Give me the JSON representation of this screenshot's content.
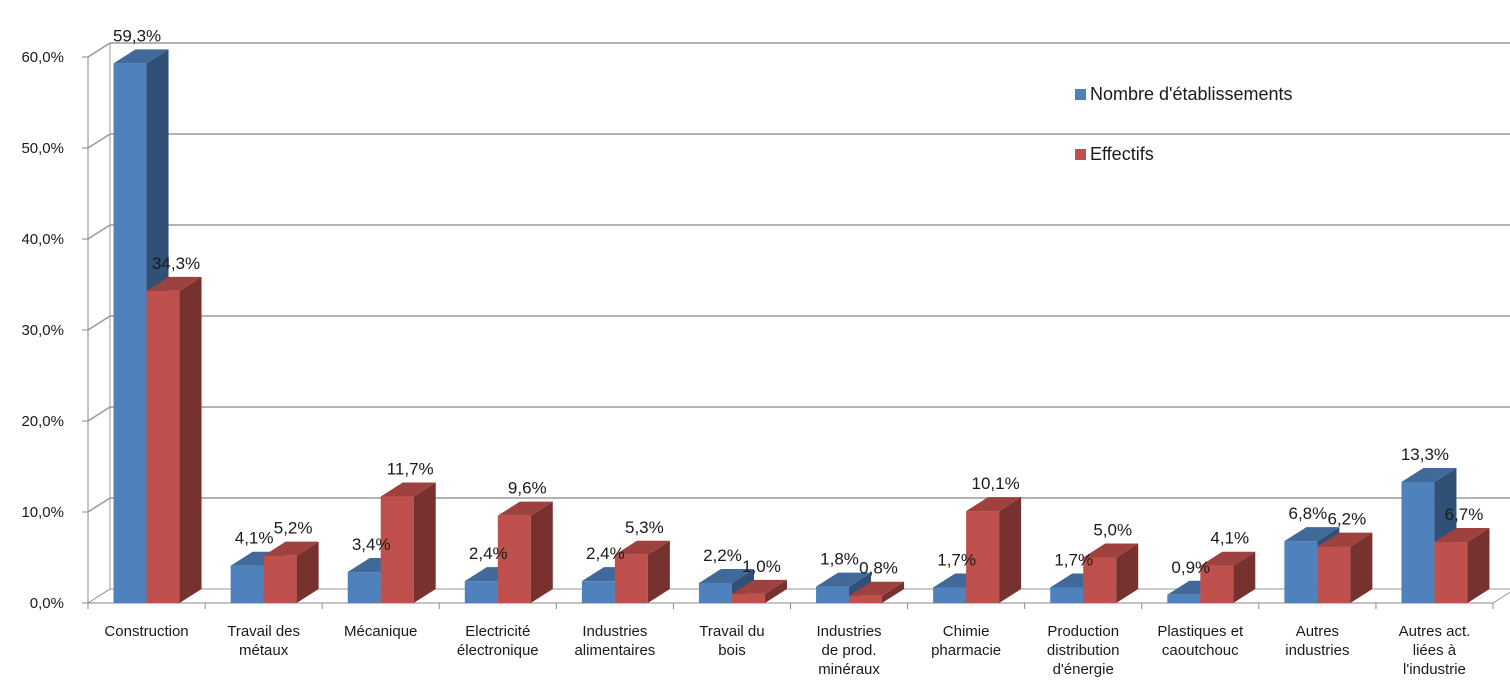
{
  "chart_data": {
    "type": "bar",
    "title": "",
    "xlabel": "",
    "ylabel": "",
    "ylim": [
      0,
      60
    ],
    "yticks": [
      "0,0%",
      "10,0%",
      "20,0%",
      "30,0%",
      "40,0%",
      "50,0%",
      "60,0%"
    ],
    "grid": true,
    "legend_position": "top-right",
    "categories": [
      [
        "Construction"
      ],
      [
        "Travail des",
        "métaux"
      ],
      [
        "Mécanique"
      ],
      [
        "Electricité",
        "électronique"
      ],
      [
        "Industries",
        "alimentaires"
      ],
      [
        "Travail du",
        "bois"
      ],
      [
        "Industries",
        "de prod.",
        "minéraux"
      ],
      [
        "Chimie",
        "pharmacie"
      ],
      [
        "Production",
        "distribution",
        "d'énergie"
      ],
      [
        "Plastiques et",
        "caoutchouc"
      ],
      [
        "Autres",
        "industries"
      ],
      [
        "Autres act.",
        "liées à",
        "l'industrie"
      ]
    ],
    "series": [
      {
        "name": "Nombre d'établissements",
        "color": "#4f81bd",
        "values": [
          59.3,
          4.1,
          3.4,
          2.4,
          2.4,
          2.2,
          1.8,
          1.7,
          1.7,
          0.9,
          6.8,
          13.3
        ],
        "labels": [
          "59,3%",
          "4,1%",
          "3,4%",
          "2,4%",
          "2,4%",
          "2,2%",
          "1,8%",
          "1,7%",
          "1,7%",
          "0,9%",
          "6,8%",
          "13,3%"
        ]
      },
      {
        "name": "Effectifs",
        "color": "#c0504d",
        "values": [
          34.3,
          5.2,
          11.7,
          9.6,
          5.3,
          1.0,
          0.8,
          10.1,
          5.0,
          4.1,
          6.2,
          6.7
        ],
        "labels": [
          "34,3%",
          "5,2%",
          "11,7%",
          "9,6%",
          "5,3%",
          "1,0%",
          "0,8%",
          "10,1%",
          "5,0%",
          "4,1%",
          "6,2%",
          "6,7%"
        ]
      }
    ]
  }
}
